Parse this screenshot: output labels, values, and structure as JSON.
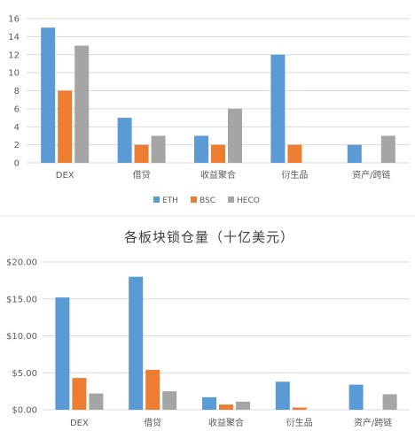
{
  "colors": {
    "ETH": "#5b9bd5",
    "BSC": "#ed7d31",
    "HECO": "#a5a5a5"
  },
  "chart_data": [
    {
      "type": "bar",
      "title": "",
      "categories": [
        "DEX",
        "借贷",
        "收益聚合",
        "衍生品",
        "资产/跨链"
      ],
      "ylim": [
        0,
        16
      ],
      "yticks": [
        "0",
        "2",
        "4",
        "6",
        "8",
        "10",
        "12",
        "14",
        "16"
      ],
      "legend_position": "bottom",
      "grid": true,
      "series": [
        {
          "name": "ETH",
          "values": [
            15,
            5,
            3,
            12,
            2
          ]
        },
        {
          "name": "BSC",
          "values": [
            8,
            2,
            2,
            2,
            0
          ]
        },
        {
          "name": "HECO",
          "values": [
            13,
            3,
            6,
            0,
            3
          ]
        }
      ]
    },
    {
      "type": "bar",
      "title": "各板块锁仓量（十亿美元）",
      "categories": [
        "DEX",
        "借贷",
        "收益聚合",
        "衍生品",
        "资产/跨链"
      ],
      "ylim": [
        0,
        20
      ],
      "yticks": [
        "$0.00",
        "$5.00",
        "$10.00",
        "$15.00",
        "$20.00"
      ],
      "grid": true,
      "series": [
        {
          "name": "ETH",
          "values": [
            15.2,
            18.0,
            1.7,
            3.8,
            3.4
          ]
        },
        {
          "name": "BSC",
          "values": [
            4.3,
            5.4,
            0.7,
            0.3,
            0
          ]
        },
        {
          "name": "HECO",
          "values": [
            2.2,
            2.5,
            1.1,
            0,
            2.1
          ]
        }
      ]
    }
  ]
}
